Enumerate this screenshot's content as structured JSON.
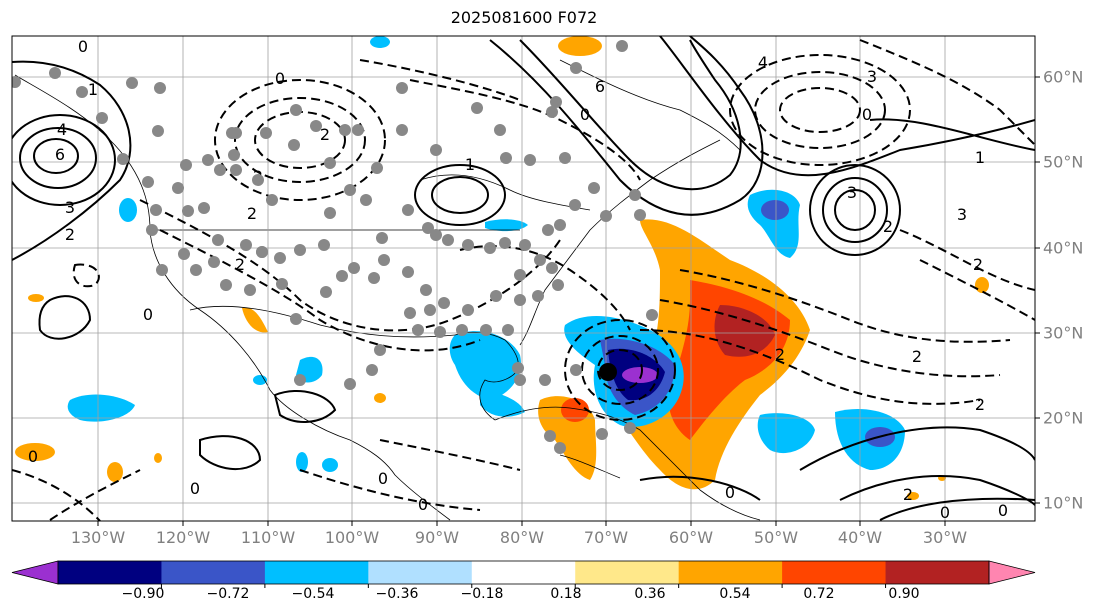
{
  "title": "2025081600 F072",
  "lon_labels": [
    "130°W",
    "120°W",
    "110°W",
    "100°W",
    "90°W",
    "80°W",
    "70°W",
    "60°W",
    "50°W",
    "40°W",
    "30°W"
  ],
  "lat_labels": [
    "60°N",
    "50°N",
    "40°N",
    "30°N",
    "20°N",
    "10°N"
  ],
  "colorbar": {
    "ticks": [
      "−0.90",
      "−0.72",
      "−0.54",
      "−0.36",
      "−0.18",
      "0.18",
      "0.36",
      "0.54",
      "0.72",
      "0.90"
    ],
    "colors": [
      "#9b30d0",
      "#000080",
      "#3a55c8",
      "#00bfff",
      "#b0e0ff",
      "#ffffff",
      "#ffe88a",
      "#ffa500",
      "#ff4500",
      "#b22222",
      "#ff85b0"
    ]
  },
  "contour_labels": [
    "0",
    "1",
    "2",
    "3",
    "4",
    "6",
    "0",
    "3",
    "2",
    "1",
    "2",
    "2",
    "0",
    "4",
    "6",
    "0",
    "0",
    "2",
    "2",
    "0",
    "0",
    "2",
    "1",
    "2",
    "0",
    "2",
    "0",
    "0",
    "0",
    "0",
    "2",
    "2",
    "3",
    "3"
  ],
  "storm_marker": "tropical-cyclone-center"
}
